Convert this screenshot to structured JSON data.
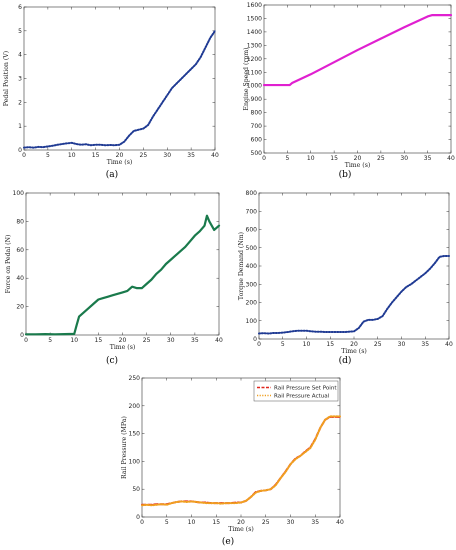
{
  "chart_data": [
    {
      "id": "a",
      "type": "line",
      "panel_label": "(a)",
      "xlabel": "Time (s)",
      "ylabel": "Pedal Position (V)",
      "xlim": [
        0,
        40
      ],
      "ylim": [
        0,
        6
      ],
      "xticks": [
        0,
        5,
        10,
        15,
        20,
        25,
        30,
        35,
        40
      ],
      "yticks": [
        0,
        1,
        2,
        3,
        4,
        5,
        6
      ],
      "series": [
        {
          "color": "#1f3a93",
          "style": "dotted",
          "x": [
            0,
            1,
            2,
            3,
            4,
            5,
            6,
            7,
            8,
            9,
            10,
            11,
            12,
            13,
            14,
            15,
            16,
            17,
            18,
            19,
            20,
            21,
            22,
            23,
            24,
            25,
            26,
            27,
            28,
            29,
            30,
            31,
            32,
            33,
            34,
            35,
            36,
            37,
            38,
            39,
            40
          ],
          "y": [
            0.1,
            0.12,
            0.1,
            0.13,
            0.12,
            0.15,
            0.18,
            0.22,
            0.25,
            0.28,
            0.3,
            0.25,
            0.22,
            0.24,
            0.2,
            0.22,
            0.22,
            0.2,
            0.21,
            0.2,
            0.22,
            0.35,
            0.6,
            0.8,
            0.85,
            0.9,
            1.05,
            1.4,
            1.7,
            2.0,
            2.3,
            2.6,
            2.8,
            3.0,
            3.2,
            3.4,
            3.6,
            3.9,
            4.3,
            4.7,
            5.0
          ]
        }
      ]
    },
    {
      "id": "b",
      "type": "line",
      "panel_label": "(b)",
      "xlabel": "Time (s)",
      "ylabel": "Engine Speed (rpm)",
      "xlim": [
        0,
        40
      ],
      "ylim": [
        500,
        1600
      ],
      "xticks": [
        0,
        5,
        10,
        15,
        20,
        25,
        30,
        35,
        40
      ],
      "yticks": [
        500,
        600,
        700,
        800,
        900,
        1000,
        1100,
        1200,
        1300,
        1400,
        1500,
        1600
      ],
      "series": [
        {
          "color": "#e020d0",
          "style": "solid",
          "x": [
            0,
            2,
            4,
            5.5,
            6,
            10,
            15,
            20,
            25,
            30,
            35,
            36,
            38,
            40
          ],
          "y": [
            1005,
            1005,
            1005,
            1005,
            1020,
            1085,
            1175,
            1265,
            1350,
            1435,
            1515,
            1525,
            1525,
            1525
          ]
        }
      ]
    },
    {
      "id": "c",
      "type": "line",
      "panel_label": "(c)",
      "xlabel": "Time (s)",
      "ylabel": "Force on Pedal (N)",
      "xlim": [
        0,
        40
      ],
      "ylim": [
        0,
        100
      ],
      "xticks": [
        0,
        5,
        10,
        15,
        20,
        25,
        30,
        35,
        40
      ],
      "yticks": [
        0,
        20,
        40,
        60,
        80,
        100
      ],
      "series": [
        {
          "color": "#1a7a4c",
          "style": "solid",
          "x": [
            0,
            2,
            4,
            6,
            8,
            10,
            10.5,
            11,
            12,
            13,
            14,
            15,
            16,
            17,
            18,
            19,
            20,
            21,
            22,
            23,
            24,
            25,
            26,
            27,
            28,
            29,
            30,
            31,
            32,
            33,
            34,
            35,
            36,
            37,
            37.5,
            38,
            39,
            40
          ],
          "y": [
            0.5,
            0.5,
            0.6,
            0.5,
            0.6,
            0.8,
            7,
            13,
            16,
            19,
            22,
            25,
            26,
            27,
            28,
            29,
            30,
            31,
            34,
            33,
            33,
            36,
            39,
            43,
            46,
            50,
            53,
            56,
            59,
            62,
            66,
            70,
            73,
            77,
            84,
            80,
            74,
            77
          ]
        }
      ]
    },
    {
      "id": "d",
      "type": "line",
      "panel_label": "(d)",
      "xlabel": "Time (s)",
      "ylabel": "Torque Demand (Nm)",
      "xlim": [
        0,
        40
      ],
      "ylim": [
        0,
        800
      ],
      "xticks": [
        0,
        5,
        10,
        15,
        20,
        25,
        30,
        35,
        40
      ],
      "yticks": [
        0,
        100,
        200,
        300,
        400,
        500,
        600,
        700,
        800
      ],
      "series": [
        {
          "color": "#1f3a93",
          "style": "dotted",
          "x": [
            0,
            1,
            2,
            3,
            4,
            5,
            6,
            7,
            8,
            9,
            10,
            11,
            12,
            13,
            14,
            15,
            16,
            17,
            18,
            19,
            20,
            21,
            22,
            23,
            24,
            25,
            26,
            27,
            28,
            29,
            30,
            31,
            32,
            33,
            34,
            35,
            36,
            37,
            38,
            39,
            40
          ],
          "y": [
            30,
            32,
            30,
            33,
            33,
            35,
            38,
            42,
            45,
            45,
            45,
            42,
            40,
            40,
            38,
            38,
            38,
            38,
            38,
            40,
            42,
            60,
            95,
            105,
            105,
            110,
            125,
            165,
            200,
            230,
            260,
            285,
            300,
            320,
            340,
            360,
            385,
            415,
            450,
            455,
            455
          ]
        }
      ]
    },
    {
      "id": "e",
      "type": "line",
      "panel_label": "(e)",
      "xlabel": "Time (s)",
      "ylabel": "Rail Pressure (MPa)",
      "xlim": [
        0,
        40
      ],
      "ylim": [
        0,
        250
      ],
      "xticks": [
        0,
        5,
        10,
        15,
        20,
        25,
        30,
        35,
        40
      ],
      "yticks": [
        0,
        50,
        100,
        150,
        200,
        250
      ],
      "legend_position": "top-right",
      "series": [
        {
          "name": "Rail Pressure Set Point",
          "color": "#e0261c",
          "style": "dashed",
          "x": [
            0,
            1,
            2,
            3,
            4,
            5,
            6,
            7,
            8,
            9,
            10,
            11,
            12,
            13,
            14,
            15,
            16,
            17,
            18,
            19,
            20,
            21,
            22,
            23,
            24,
            25,
            26,
            27,
            28,
            29,
            30,
            31,
            32,
            33,
            34,
            35,
            36,
            37,
            38,
            39,
            40
          ],
          "y": [
            22,
            22,
            22,
            23,
            23,
            23,
            25,
            27,
            28,
            28,
            28,
            27,
            26,
            26,
            25,
            25,
            25,
            25,
            25,
            26,
            26,
            29,
            36,
            45,
            47,
            48,
            50,
            58,
            70,
            82,
            95,
            105,
            110,
            118,
            125,
            140,
            160,
            175,
            180,
            180,
            180
          ]
        },
        {
          "name": "Rail Pressure Actual",
          "color": "#f0a020",
          "style": "dotted",
          "x": [
            0,
            1,
            2,
            3,
            4,
            5,
            6,
            7,
            8,
            9,
            10,
            11,
            12,
            13,
            14,
            15,
            16,
            17,
            18,
            19,
            20,
            21,
            22,
            23,
            24,
            25,
            26,
            27,
            28,
            29,
            30,
            31,
            32,
            33,
            34,
            35,
            36,
            37,
            38,
            39,
            40
          ],
          "y": [
            21,
            22,
            21,
            22,
            23,
            22,
            25,
            27,
            28,
            27,
            28,
            27,
            26,
            25,
            25,
            25,
            24,
            25,
            25,
            25,
            26,
            29,
            36,
            44,
            47,
            48,
            50,
            57,
            70,
            81,
            95,
            104,
            110,
            117,
            124,
            139,
            160,
            175,
            181,
            181,
            181
          ]
        }
      ]
    }
  ]
}
